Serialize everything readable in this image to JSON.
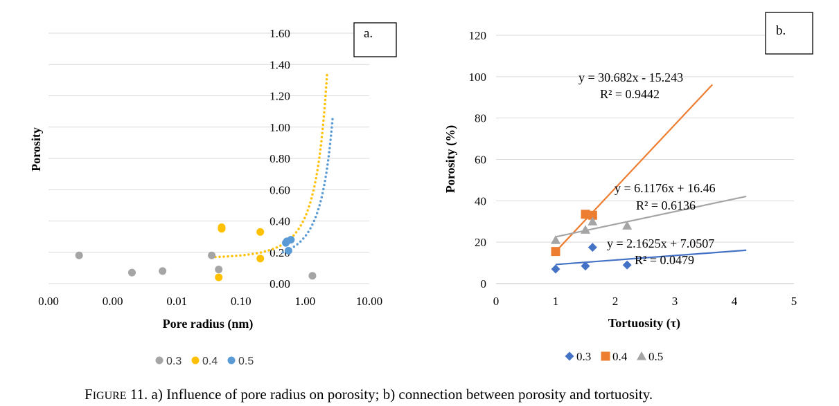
{
  "caption": {
    "prefix_initial": "F",
    "prefix_rest": "IGURE",
    "text": " 11. a) Influence of pore radius on porosity; b) connection between porosity and tortuosity."
  },
  "colors": {
    "s03": "#a5a5a5",
    "s04": "#ffc000",
    "s05": "#5b9bd5",
    "b03": "#4472c4",
    "b04": "#ed7d31",
    "b05": "#a5a5a5"
  },
  "chart_data": [
    {
      "type": "scatter",
      "panel_label": "a.",
      "title": "",
      "xlabel": "Pore radius (nm)",
      "ylabel": "Porosity",
      "x_scale": "log",
      "xlim": [
        0.0001,
        10
      ],
      "ylim": [
        0,
        1.6
      ],
      "x_tick_values": [
        0.0001,
        0.001,
        0.01,
        0.1,
        1,
        10
      ],
      "x_tick_labels": [
        "0.00",
        "0.00",
        "0.01",
        "0.10",
        "1.00",
        "10.00"
      ],
      "y_ticks": [
        "0.00",
        "0.20",
        "0.40",
        "0.60",
        "0.80",
        "1.00",
        "1.20",
        "1.40",
        "1.60"
      ],
      "grid": true,
      "legend_position": "bottom",
      "series": [
        {
          "name": "0.3",
          "color": "#a5a5a5",
          "marker": "circle",
          "x": [
            0.0003,
            0.002,
            0.006,
            0.035,
            0.045,
            1.3
          ],
          "y": [
            0.18,
            0.07,
            0.08,
            0.18,
            0.09,
            0.05
          ]
        },
        {
          "name": "0.4",
          "color": "#ffc000",
          "marker": "circle",
          "x": [
            0.045,
            0.05,
            0.05,
            0.2,
            0.2
          ],
          "y": [
            0.04,
            0.36,
            0.35,
            0.33,
            0.16
          ]
        },
        {
          "name": "0.5",
          "color": "#5b9bd5",
          "marker": "circle",
          "x": [
            0.5,
            0.52,
            0.55,
            0.6
          ],
          "y": [
            0.26,
            0.27,
            0.21,
            0.28
          ]
        }
      ],
      "trendlines": [
        {
          "series": "0.4",
          "type": "exponential",
          "x_range": [
            0.04,
            2.2
          ],
          "y_range": [
            0.17,
            1.34
          ]
        },
        {
          "series": "0.5",
          "type": "exponential",
          "x_range": [
            0.45,
            2.7
          ],
          "y_range": [
            0.2,
            1.07
          ]
        }
      ]
    },
    {
      "type": "scatter",
      "panel_label": "b.",
      "title": "",
      "xlabel": "Tortuosity (τ)",
      "ylabel": "Porosity (%)",
      "xlim": [
        0,
        5
      ],
      "ylim": [
        0,
        120
      ],
      "x_ticks": [
        "0",
        "1",
        "2",
        "3",
        "4",
        "5"
      ],
      "y_ticks": [
        "0",
        "20",
        "40",
        "60",
        "80",
        "100",
        "120"
      ],
      "grid": true,
      "legend_position": "bottom",
      "series": [
        {
          "name": "0.3",
          "color": "#4472c4",
          "marker": "diamond",
          "x": [
            1.0,
            1.5,
            1.62,
            2.2
          ],
          "y": [
            7.0,
            8.5,
            17.5,
            9.0
          ]
        },
        {
          "name": "0.4",
          "color": "#ed7d31",
          "marker": "square",
          "x": [
            1.0,
            1.5,
            1.62
          ],
          "y": [
            15.5,
            33.5,
            33.0
          ]
        },
        {
          "name": "0.5",
          "color": "#a5a5a5",
          "marker": "triangle",
          "x": [
            1.0,
            1.5,
            1.62,
            2.2
          ],
          "y": [
            21.0,
            26.0,
            30.0,
            28.0
          ]
        }
      ],
      "trendlines": [
        {
          "series": "0.3",
          "slope": 2.1625,
          "intercept": 7.0507,
          "x_range": [
            1.0,
            4.2
          ]
        },
        {
          "series": "0.4",
          "slope": 30.682,
          "intercept": -15.243,
          "x_range": [
            1.0,
            3.63
          ]
        },
        {
          "series": "0.5",
          "slope": 6.1176,
          "intercept": 16.46,
          "x_range": [
            1.0,
            4.2
          ]
        }
      ],
      "annotations": [
        {
          "series": "0.4",
          "equation": "y = 30.682x - 15.243",
          "r2": "R² = 0.9442"
        },
        {
          "series": "0.5",
          "equation": "y = 6.1176x + 16.46",
          "r2": "R² = 0.6136"
        },
        {
          "series": "0.3",
          "equation": "y = 2.1625x + 7.0507",
          "r2": "R² = 0.0479"
        }
      ]
    }
  ]
}
